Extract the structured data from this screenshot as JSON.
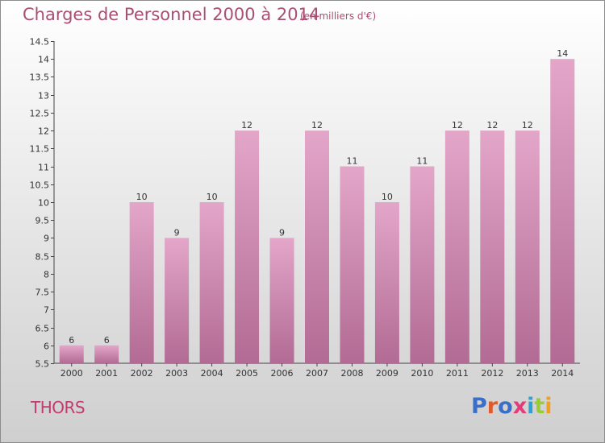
{
  "header": {
    "title": "Charges de Personnel 2000 à 2014",
    "subtitle": "(en milliers d'€)"
  },
  "footer": {
    "place": "THORS",
    "logo": "Proxiti"
  },
  "colors": {
    "bar_top": "#e3a6c9",
    "bar_bottom": "#b26b94",
    "title": "#a94f73",
    "place": "#c23b6e",
    "logo_letters": [
      "#3a6fc9",
      "#e05a2a",
      "#3a6fc9",
      "#e63b7a",
      "#2ea0d4",
      "#9acd32",
      "#f0a020"
    ]
  },
  "chart_data": {
    "type": "bar",
    "title": "Charges de Personnel 2000 à 2014",
    "subtitle": "(en milliers d'€)",
    "categories": [
      "2000",
      "2001",
      "2002",
      "2003",
      "2004",
      "2005",
      "2006",
      "2007",
      "2008",
      "2009",
      "2010",
      "2011",
      "2012",
      "2013",
      "2014"
    ],
    "values": [
      6,
      6,
      10,
      9,
      10,
      12,
      9,
      12,
      11,
      10,
      11,
      12,
      12,
      12,
      14
    ],
    "value_labels": [
      "6",
      "6",
      "10",
      "9",
      "10",
      "12",
      "9",
      "12",
      "11",
      "10",
      "11",
      "12",
      "12",
      "12",
      "14"
    ],
    "ylim": [
      5.5,
      14.5
    ],
    "yticks": [
      5.5,
      6,
      6.5,
      7,
      7.5,
      8,
      8.5,
      9,
      9.5,
      10,
      10.5,
      11,
      11.5,
      12,
      12.5,
      13,
      13.5,
      14,
      14.5
    ],
    "ytick_labels": [
      "5.5",
      "6",
      "6.5",
      "7",
      "7.5",
      "8",
      "8.5",
      "9",
      "9.5",
      "10",
      "10.5",
      "11",
      "11.5",
      "12",
      "12.5",
      "13",
      "13.5",
      "14",
      "14.5"
    ],
    "grid": false,
    "legend": "none"
  }
}
